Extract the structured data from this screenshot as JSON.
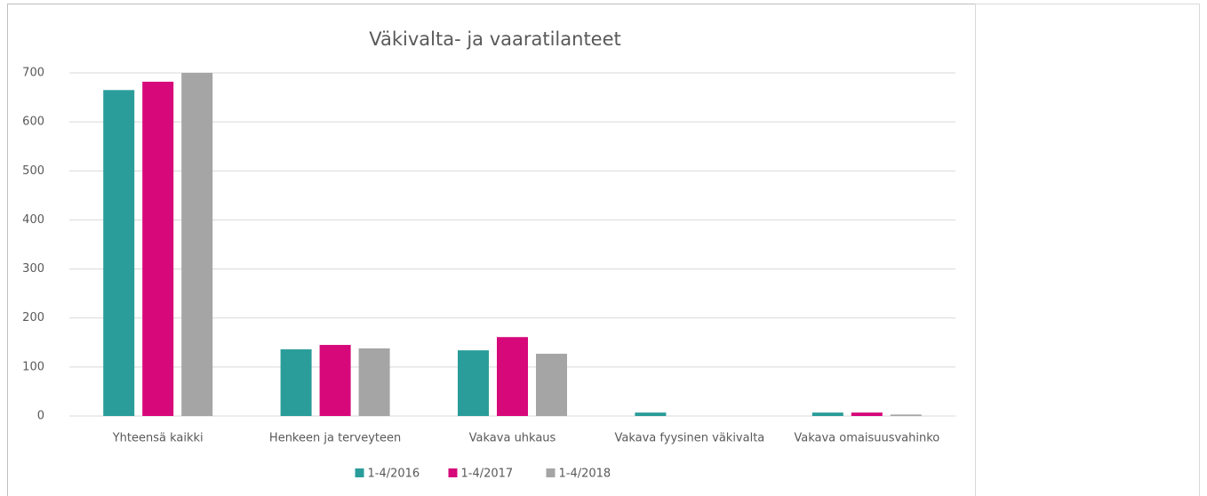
{
  "chart_data": {
    "type": "bar",
    "title": "Väkivalta- ja vaaratilanteet",
    "categories": [
      "Yhteensä kaikki",
      "Henkeen ja terveyteen",
      "Vakava uhkaus",
      "Vakava fyysinen väkivalta",
      "Vakava omaisuusvahinko"
    ],
    "series": [
      {
        "name": "1-4/2016",
        "color": "#2a9d9a",
        "values": [
          665,
          136,
          134,
          7,
          7
        ]
      },
      {
        "name": "1-4/2017",
        "color": "#d6087a",
        "values": [
          682,
          145,
          161,
          0,
          7
        ]
      },
      {
        "name": "1-4/2018",
        "color": "#a5a5a5",
        "values": [
          700,
          138,
          127,
          0,
          3
        ]
      }
    ],
    "ylim": [
      0,
      700
    ],
    "yticks": [
      0,
      100,
      200,
      300,
      400,
      500,
      600,
      700
    ],
    "grid": true,
    "legend": "bottom"
  }
}
